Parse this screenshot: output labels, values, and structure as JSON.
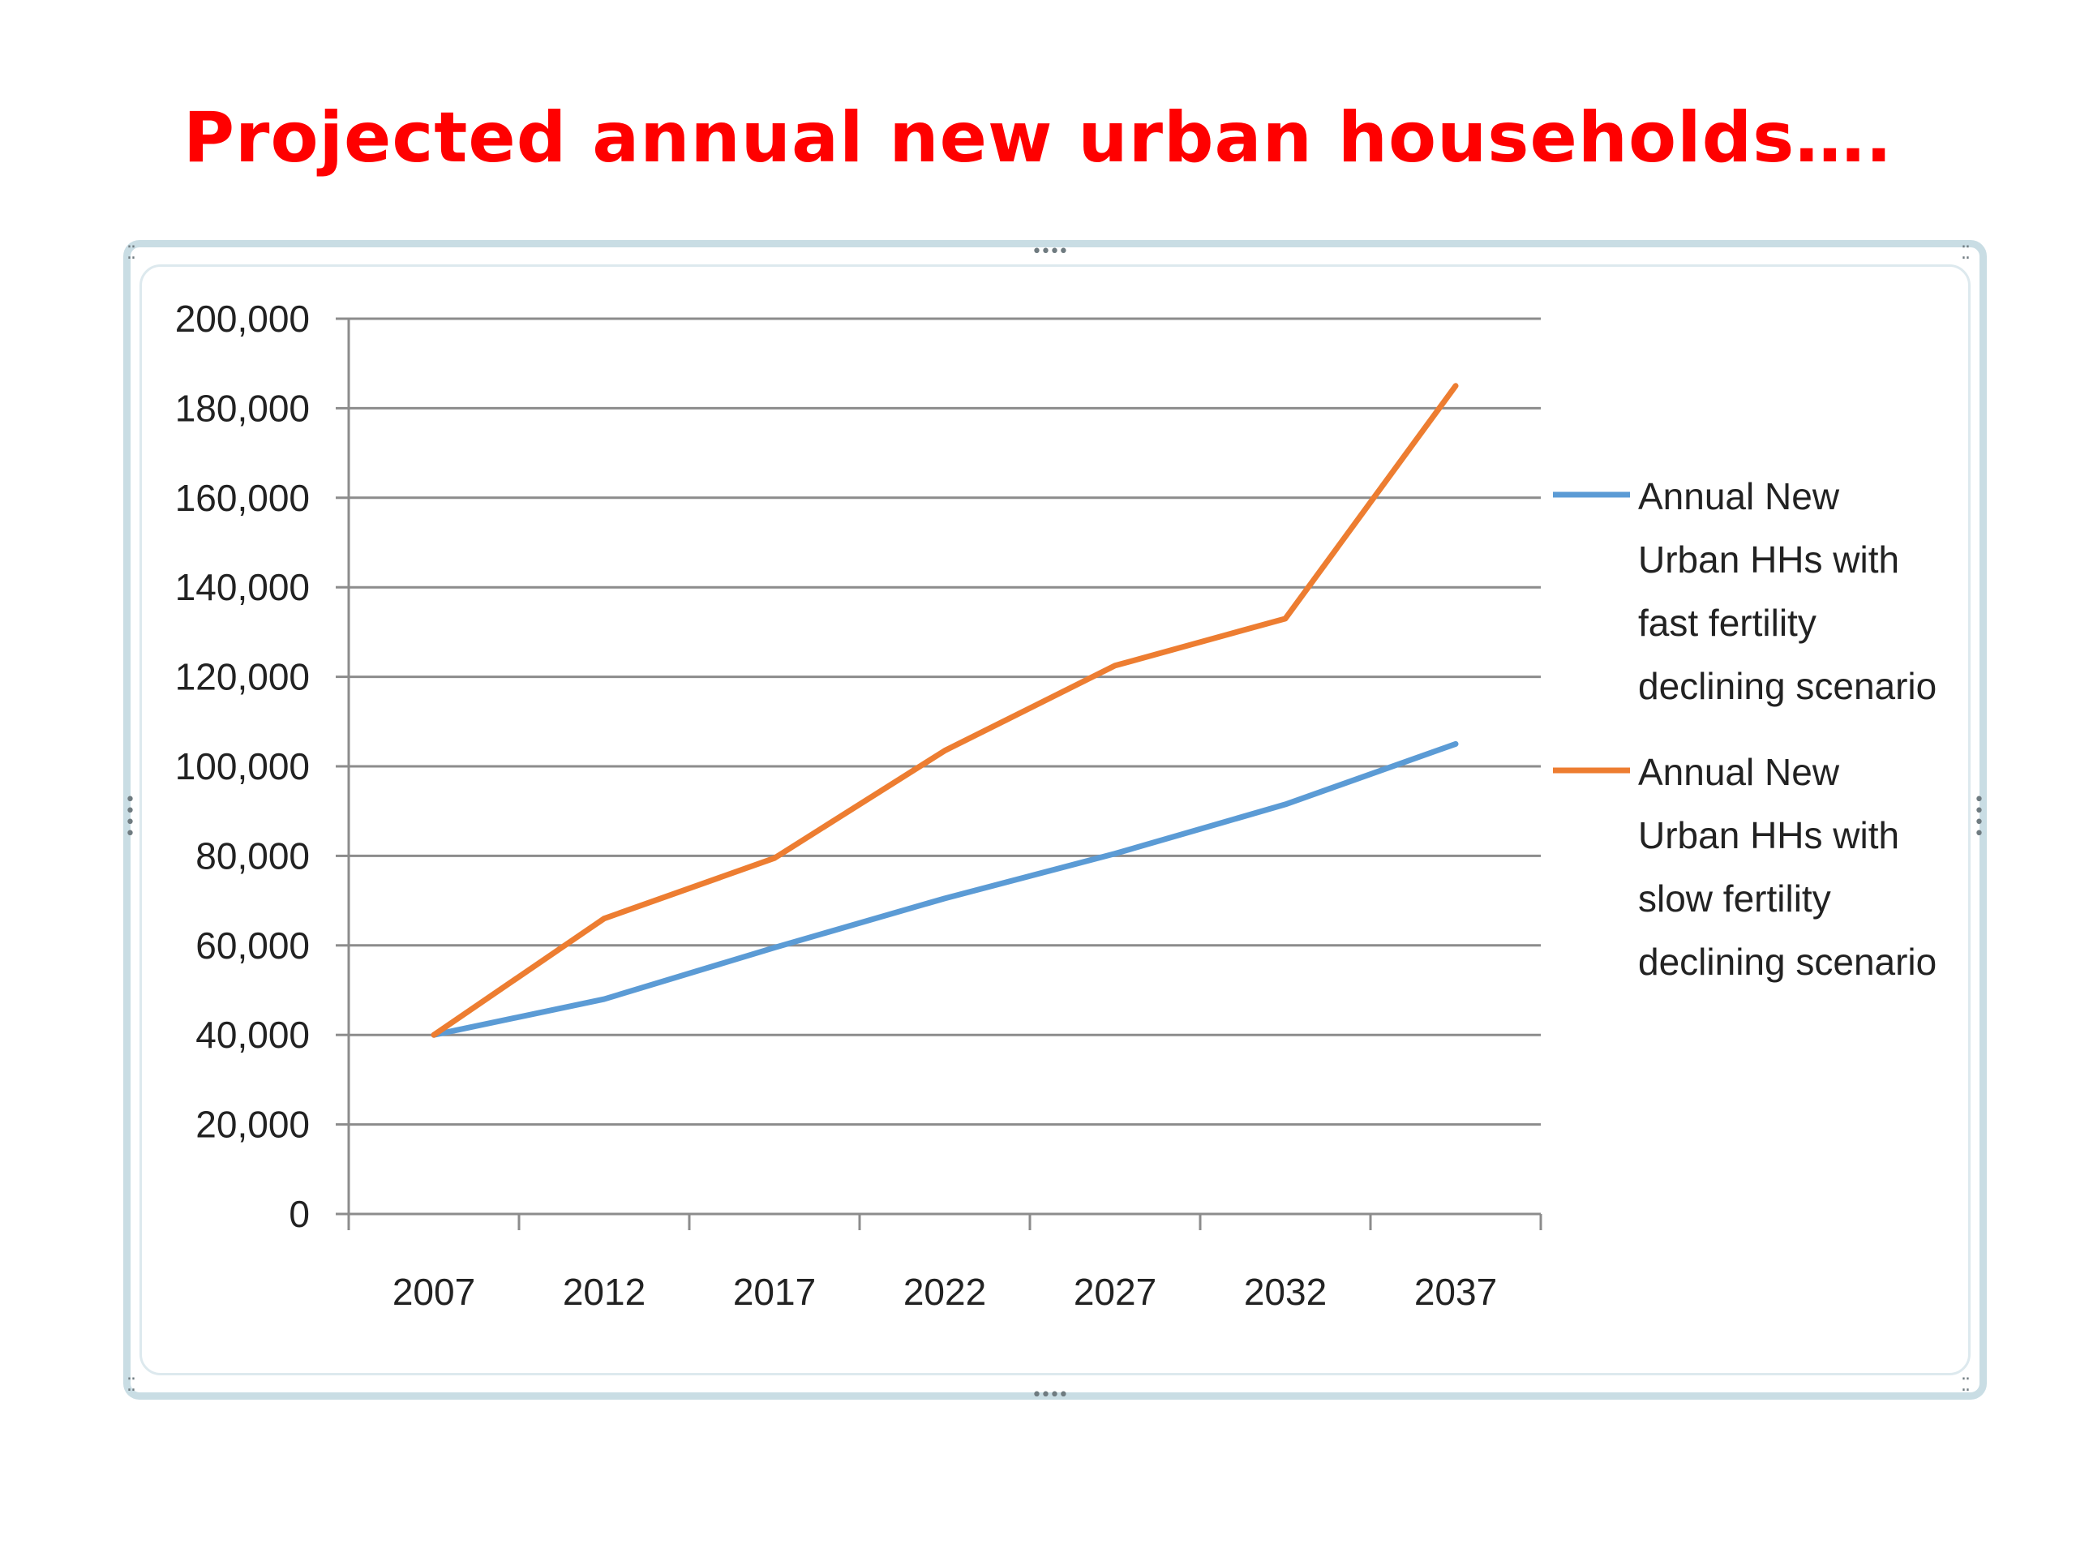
{
  "slide": {
    "title": "Projected annual new urban households…."
  },
  "chart_data": {
    "type": "line",
    "title": "",
    "xlabel": "",
    "ylabel": "",
    "x": [
      "2007",
      "2012",
      "2017",
      "2022",
      "2027",
      "2032",
      "2037"
    ],
    "ylim": [
      0,
      200000
    ],
    "yticks": [
      0,
      20000,
      40000,
      60000,
      80000,
      100000,
      120000,
      140000,
      160000,
      180000,
      200000
    ],
    "ytick_labels": [
      "0",
      "20,000",
      "40,000",
      "60,000",
      "80,000",
      "100,000",
      "120,000",
      "140,000",
      "160,000",
      "180,000",
      "200,000"
    ],
    "grid": true,
    "legend_position": "right",
    "series": [
      {
        "name": "Annual New Urban HHs with fast fertility declining scenario",
        "legend_lines": [
          "Annual New",
          "Urban HHs with",
          "fast fertility",
          "declining scenario"
        ],
        "color": "#5b9bd5",
        "values": [
          40000,
          48000,
          59500,
          70500,
          80500,
          91500,
          105000
        ]
      },
      {
        "name": "Annual New Urban HHs with slow fertility declining scenario",
        "legend_lines": [
          "Annual New",
          "Urban HHs with",
          "slow fertility",
          "declining scenario"
        ],
        "color": "#ed7d31",
        "values": [
          40000,
          66000,
          79500,
          103500,
          122500,
          133000,
          185000
        ]
      }
    ]
  }
}
